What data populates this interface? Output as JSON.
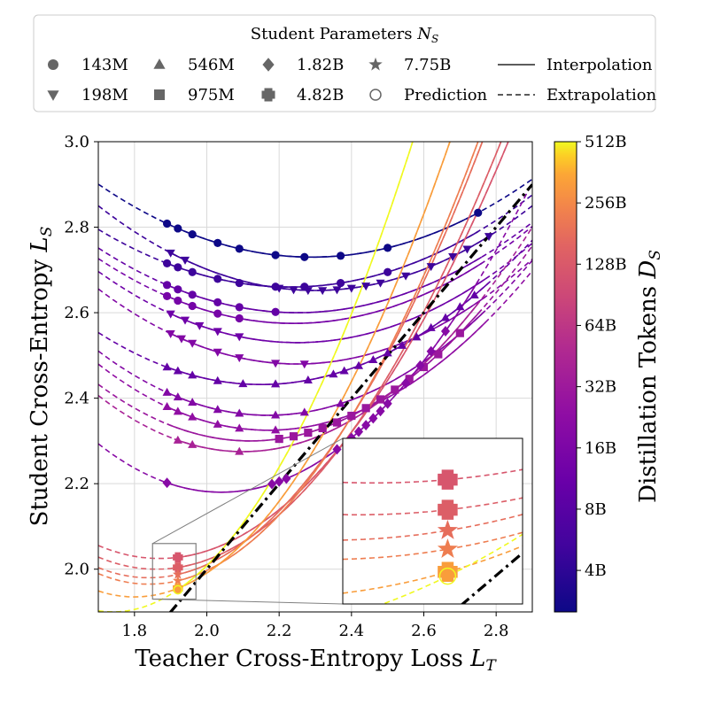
{
  "chart_data": {
    "type": "scatter",
    "xlabel": "Teacher Cross-Entropy Loss L_T",
    "ylabel": "Student Cross-Entropy L_S",
    "colorbar_label": "Distillation Tokens D_S",
    "xlim": [
      1.7,
      2.9
    ],
    "ylim": [
      1.9,
      3.0
    ],
    "xticks": [
      "1.8",
      "2.0",
      "2.2",
      "2.4",
      "2.6",
      "2.8"
    ],
    "yticks": [
      "2.0",
      "2.2",
      "2.4",
      "2.6",
      "2.8",
      "3.0"
    ],
    "colorbar_ticks": [
      "4B",
      "8B",
      "16B",
      "32B",
      "64B",
      "128B",
      "256B",
      "512B"
    ],
    "colorbar_range_tokens_B": [
      2.5,
      512
    ],
    "grid": true,
    "legend": {
      "title": "Student Parameters N_S",
      "placement": "top",
      "markers": [
        {
          "marker": "circle",
          "label": "143M"
        },
        {
          "marker": "triangle-down",
          "label": "198M"
        },
        {
          "marker": "triangle-up",
          "label": "546M"
        },
        {
          "marker": "square",
          "label": "975M"
        },
        {
          "marker": "diamond",
          "label": "1.82B"
        },
        {
          "marker": "plus",
          "label": "4.82B"
        },
        {
          "marker": "star",
          "label": "7.75B"
        },
        {
          "marker": "open-circle",
          "label": "Prediction"
        }
      ],
      "lines": [
        {
          "style": "solid",
          "label": "Interpolation"
        },
        {
          "style": "dashed",
          "label": "Extrapolation"
        }
      ]
    },
    "diagonal": {
      "label": "L_S = L_T",
      "style": "dash-dot",
      "color": "#000000"
    },
    "series": [
      {
        "size": "143M",
        "marker": "circle",
        "tokens_B": 2.5,
        "vertex": [
          2.29,
          2.73
        ],
        "a": 0.49,
        "fit_range": [
          1.89,
          2.75
        ],
        "points_x": [
          1.89,
          1.92,
          1.96,
          2.03,
          2.09,
          2.19,
          2.27,
          2.37,
          2.5,
          2.75
        ]
      },
      {
        "size": "143M",
        "marker": "circle",
        "tokens_B": 5,
        "vertex": [
          2.23,
          2.66
        ],
        "a": 0.48,
        "fit_range": [
          1.89,
          2.75
        ],
        "points_x": [
          1.89,
          1.92,
          1.96,
          2.03,
          2.09,
          2.19,
          2.27,
          2.37,
          2.5
        ]
      },
      {
        "size": "198M",
        "marker": "triangle-down",
        "tokens_B": 5,
        "vertex": [
          2.3,
          2.652
        ],
        "a": 0.55,
        "fit_range": [
          1.89,
          2.78
        ],
        "points_x": [
          1.9,
          1.94,
          2.2,
          2.24,
          2.28,
          2.32,
          2.36,
          2.4,
          2.44,
          2.48,
          2.55,
          2.62,
          2.68,
          2.72,
          2.78
        ]
      },
      {
        "size": "143M",
        "marker": "circle",
        "tokens_B": 10,
        "vertex": [
          2.25,
          2.6
        ],
        "a": 0.5,
        "fit_range": [
          1.89,
          2.76
        ],
        "points_x": [
          1.89,
          1.92,
          1.96,
          2.03,
          2.09,
          2.19
        ]
      },
      {
        "size": "143M",
        "marker": "circle",
        "tokens_B": 14,
        "vertex": [
          2.24,
          2.575
        ],
        "a": 0.52,
        "fit_range": [
          1.89,
          2.76
        ],
        "points_x": [
          1.89,
          1.92,
          1.96,
          2.03,
          2.09
        ]
      },
      {
        "size": "198M",
        "marker": "triangle-down",
        "tokens_B": 12,
        "vertex": [
          2.25,
          2.53
        ],
        "a": 0.55,
        "fit_range": [
          1.89,
          2.77
        ],
        "points_x": [
          1.9,
          1.94,
          1.98,
          2.03,
          2.09
        ]
      },
      {
        "size": "198M",
        "marker": "triangle-down",
        "tokens_B": 18,
        "vertex": [
          2.25,
          2.48
        ],
        "a": 0.58,
        "fit_range": [
          1.89,
          2.77
        ],
        "points_x": [
          1.9,
          1.93,
          1.96,
          2.03,
          2.09,
          2.19,
          2.27
        ]
      },
      {
        "size": "546M",
        "marker": "triangle-up",
        "tokens_B": 10,
        "vertex": [
          2.15,
          2.432
        ],
        "a": 0.6,
        "fit_range": [
          1.89,
          2.78
        ],
        "points_x": [
          1.89,
          1.92,
          1.96,
          2.03,
          2.1,
          2.19,
          2.28,
          2.35,
          2.38,
          2.42,
          2.46,
          2.5,
          2.54,
          2.58,
          2.62,
          2.66,
          2.7,
          2.74
        ]
      },
      {
        "size": "546M",
        "marker": "triangle-up",
        "tokens_B": 18,
        "vertex": [
          2.17,
          2.36
        ],
        "a": 0.68,
        "fit_range": [
          1.89,
          2.77
        ],
        "points_x": [
          1.89,
          1.92,
          1.96,
          2.03,
          2.09,
          2.19,
          2.27,
          2.37
        ]
      },
      {
        "size": "546M",
        "marker": "triangle-up",
        "tokens_B": 24,
        "vertex": [
          2.17,
          2.325
        ],
        "a": 0.7,
        "fit_range": [
          1.89,
          2.77
        ],
        "points_x": [
          1.89,
          1.92,
          1.96,
          2.03,
          2.09,
          2.19
        ]
      },
      {
        "size": "975M",
        "marker": "square",
        "tokens_B": 30,
        "vertex": [
          2.12,
          2.3
        ],
        "a": 0.75,
        "fit_range": [
          1.89,
          2.76
        ],
        "points_x": [
          2.2,
          2.24,
          2.28,
          2.32,
          2.36,
          2.4,
          2.44,
          2.48,
          2.52,
          2.56,
          2.6,
          2.64,
          2.7
        ]
      },
      {
        "size": "546M",
        "marker": "triangle-up",
        "tokens_B": 40,
        "vertex": [
          2.1,
          2.275
        ],
        "a": 0.82,
        "fit_range": [
          1.91,
          2.75
        ],
        "points_x": [
          1.92,
          1.96,
          2.09
        ]
      },
      {
        "size": "1.82B",
        "marker": "diamond",
        "tokens_B": 20,
        "vertex": [
          2.04,
          2.18
        ],
        "a": 0.98,
        "fit_range": [
          1.89,
          2.75
        ],
        "points_x": [
          1.89,
          2.18,
          2.2,
          2.22,
          2.36,
          2.4,
          2.42,
          2.44,
          2.46,
          2.48,
          2.5,
          2.55,
          2.59,
          2.62,
          2.66
        ]
      },
      {
        "size": "4.82B",
        "marker": "plus",
        "tokens_B": 120,
        "vertex": [
          1.87,
          2.025
        ],
        "a": 1.05,
        "fit_range": [
          1.92,
          2.88
        ],
        "points_x": [
          1.92
        ]
      },
      {
        "size": "4.82B",
        "marker": "plus",
        "tokens_B": 140,
        "vertex": [
          1.86,
          2.0
        ],
        "a": 1.1,
        "fit_range": [
          1.92,
          2.88
        ],
        "points_x": [
          1.92
        ]
      },
      {
        "size": "7.75B",
        "marker": "star",
        "tokens_B": 180,
        "vertex": [
          1.84,
          1.98
        ],
        "a": 1.2,
        "fit_range": [
          1.92,
          2.88
        ],
        "points_x": [
          1.92
        ]
      },
      {
        "size": "7.75B",
        "marker": "star",
        "tokens_B": 220,
        "vertex": [
          1.84,
          1.965
        ],
        "a": 1.25,
        "fit_range": [
          1.92,
          2.88
        ],
        "points_x": [
          1.92
        ]
      },
      {
        "size": "4.82B",
        "marker": "plus",
        "tokens_B": 320,
        "vertex": [
          1.8,
          1.935
        ],
        "a": 1.4,
        "fit_range": [
          1.92,
          2.88
        ],
        "points_x": [
          1.92
        ]
      },
      {
        "size": "7.75B",
        "marker": "open-circle",
        "tokens_B": 512,
        "vertex": [
          1.74,
          1.9
        ],
        "a": 1.6,
        "fit_range": [
          1.92,
          2.88
        ],
        "points_x": [
          1.92
        ]
      }
    ],
    "inset": {
      "source_xlim": [
        1.85,
        1.97
      ],
      "source_ylim": [
        1.93,
        2.06
      ],
      "connector_style": "gray lines from inset to zoom rectangle"
    }
  }
}
